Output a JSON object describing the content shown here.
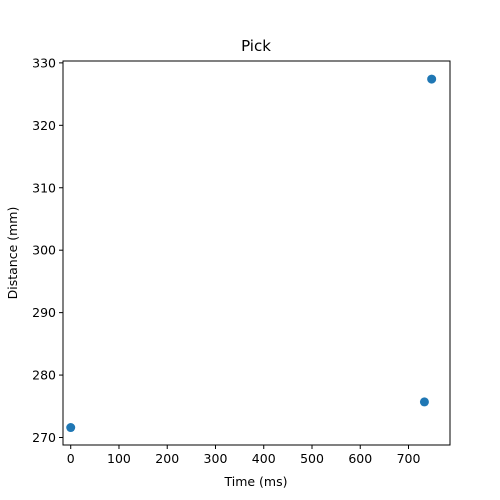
{
  "chart_data": {
    "type": "scatter",
    "title": "Pick",
    "xlabel": "Time (ms)",
    "ylabel": "Distance (mm)",
    "xlim": [
      -16,
      786
    ],
    "ylim": [
      268.8,
      330.3
    ],
    "xticks": [
      0,
      100,
      200,
      300,
      400,
      500,
      600,
      700
    ],
    "yticks": [
      270,
      280,
      290,
      300,
      310,
      320,
      330
    ],
    "grid": false,
    "color": "#1f77b4",
    "points": [
      {
        "x": 0,
        "y": 271.6
      },
      {
        "x": 733,
        "y": 275.7
      },
      {
        "x": 748,
        "y": 327.4
      }
    ]
  }
}
